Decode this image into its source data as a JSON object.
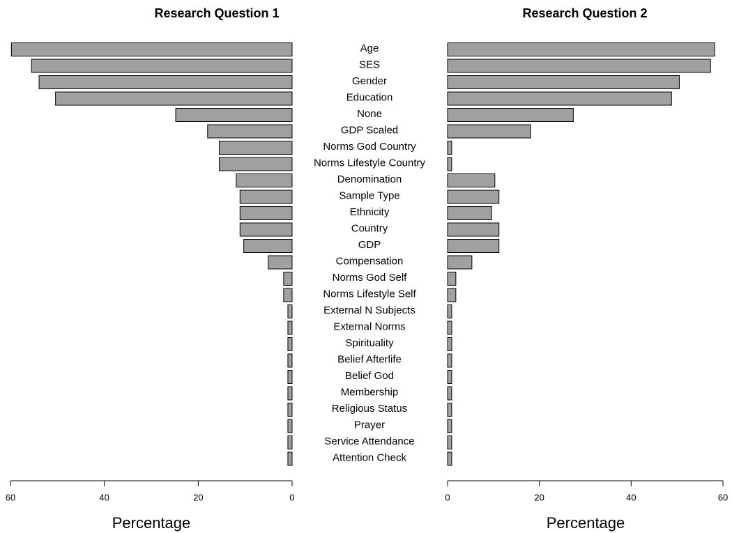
{
  "chart_data": {
    "type": "bar",
    "orientation": "horizontal",
    "x_label": "Percentage",
    "color": "#a0a0a0",
    "categories": [
      "Age",
      "SES",
      "Gender",
      "Education",
      "None",
      "GDP Scaled",
      "Norms God Country",
      "Norms Lifestyle Country",
      "Denomination",
      "Sample Type",
      "Ethnicity",
      "Country",
      "GDP",
      "Compensation",
      "Norms God Self",
      "Norms Lifestyle Self",
      "External N Subjects",
      "External Norms",
      "Spirituality",
      "Belief Afterlife",
      "Belief God",
      "Membership",
      "Religious Status",
      "Prayer",
      "Service Attendance",
      "Attention Check"
    ],
    "series": [
      {
        "name": "Research Question 1",
        "xlim": [
          0,
          60
        ],
        "xticks": [
          0,
          20,
          40,
          60
        ],
        "values": [
          59.8,
          55.5,
          53.9,
          50.4,
          24.8,
          18.0,
          15.5,
          15.5,
          11.9,
          11.1,
          11.1,
          11.1,
          10.3,
          5.1,
          1.8,
          1.8,
          0.9,
          0.9,
          0.9,
          0.9,
          0.9,
          0.9,
          0.9,
          0.9,
          0.9,
          0.9
        ]
      },
      {
        "name": "Research Question 2",
        "xlim": [
          0,
          60
        ],
        "xticks": [
          0,
          20,
          40,
          60
        ],
        "values": [
          58.2,
          57.3,
          50.5,
          48.8,
          27.4,
          18.1,
          0.9,
          0.9,
          10.3,
          11.2,
          9.6,
          11.2,
          11.2,
          5.3,
          1.8,
          1.8,
          0.9,
          0.9,
          0.9,
          0.9,
          0.9,
          0.9,
          0.9,
          0.9,
          0.9,
          0.9
        ]
      }
    ]
  }
}
